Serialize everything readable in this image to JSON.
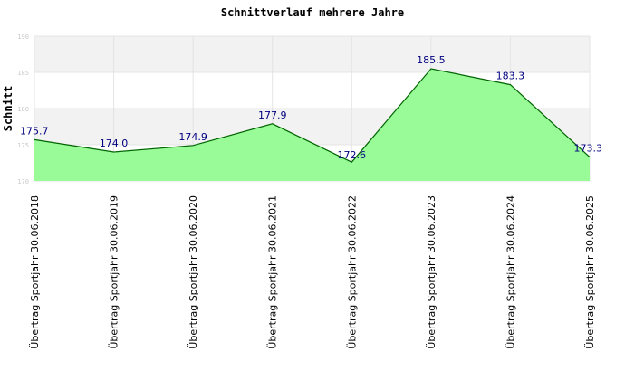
{
  "chart_data": {
    "type": "area",
    "title": "Schnittverlauf mehrere Jahre",
    "xlabel": "",
    "ylabel": "Schnitt",
    "categories": [
      "Übertrag Sportjahr 30.06.2018",
      "Übertrag Sportjahr 30.06.2019",
      "Übertrag Sportjahr 30.06.2020",
      "Übertrag Sportjahr 30.06.2021",
      "Übertrag Sportjahr 30.06.2022",
      "Übertrag Sportjahr 30.06.2023",
      "Übertrag Sportjahr 30.06.2024",
      "Übertrag Sportjahr 30.06.2025"
    ],
    "values": [
      175.7,
      174.0,
      174.9,
      177.9,
      172.6,
      185.5,
      183.3,
      173.3
    ],
    "value_labels": [
      "175.7",
      "174.0",
      "174.9",
      "177.9",
      "172.6",
      "185.5",
      "183.3",
      "173.3"
    ],
    "ylim": [
      170,
      190
    ],
    "yticks": [
      "170",
      "175",
      "180",
      "185",
      "190"
    ],
    "grid": true,
    "legend": "none",
    "colors": {
      "fill": "#98fb98",
      "line": "#006400",
      "value_label": "#000080",
      "band": "#f2f2f2",
      "tick_label": "#c8c8c8"
    }
  }
}
